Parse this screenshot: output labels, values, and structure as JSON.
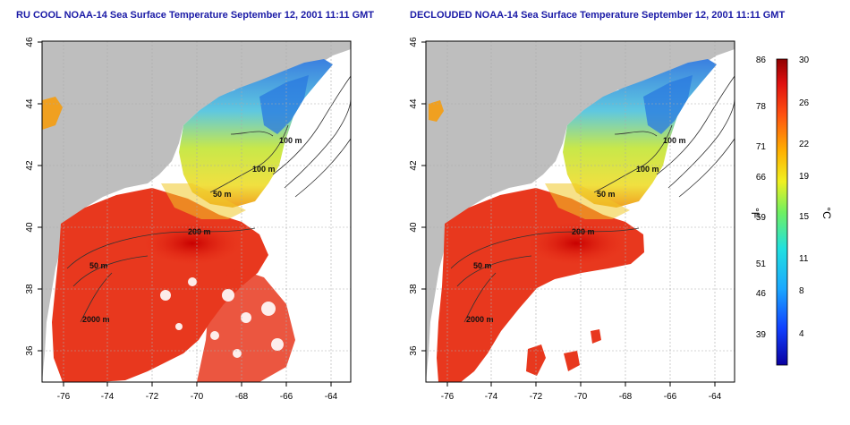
{
  "titles": {
    "left": "RU COOL NOAA-14 Sea Surface Temperature September 12, 2001 11:11 GMT",
    "right": "DECLOUDED NOAA-14 Sea Surface Temperature September 12, 2001 11:11 GMT"
  },
  "axes": {
    "x_ticks": [
      "-76",
      "-74",
      "-72",
      "-70",
      "-68",
      "-66",
      "-64"
    ],
    "y_ticks": [
      "36",
      "38",
      "40",
      "42",
      "44",
      "46"
    ]
  },
  "contour_labels": {
    "left": [
      "100 m",
      "100 m",
      "50 m",
      "200 m",
      "50 m",
      "2000 m"
    ],
    "right": [
      "100 m",
      "100 m",
      "50 m",
      "200 m",
      "50 m",
      "2000 m"
    ]
  },
  "colorbar": {
    "f_label": "°F",
    "c_label": "°C",
    "f_ticks": [
      "86",
      "78",
      "71",
      "66",
      "59",
      "51",
      "46",
      "39"
    ],
    "c_ticks": [
      "30",
      "26",
      "22",
      "19",
      "15",
      "11",
      "8",
      "4"
    ]
  },
  "colors": {
    "land": "#bebebe",
    "title": "#1a1aa6",
    "warm": "#e8321e",
    "cool": "#3aa0e8"
  }
}
